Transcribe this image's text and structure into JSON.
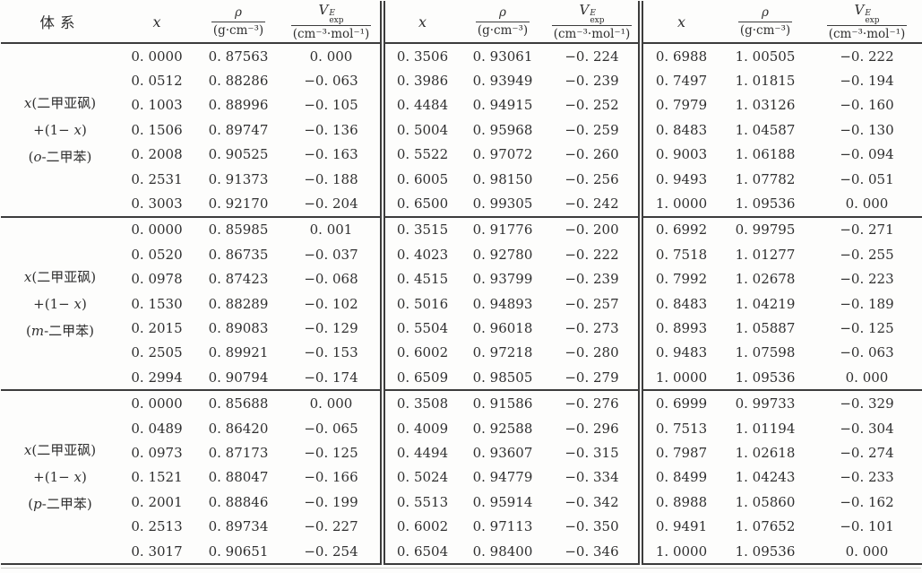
{
  "table": {
    "header": {
      "system": "体系",
      "x": "x",
      "rho_num": "ρ",
      "rho_den": "(g·cm⁻³)",
      "v_base": "V",
      "v_sup": "E",
      "v_sub": "exp",
      "v_den": "(cm⁻³·mol⁻¹)"
    },
    "groups": [
      {
        "label": {
          "l1_italic": "x",
          "l1_rest": "(二甲亚砜)",
          "l2_pre": "+(1− ",
          "l2_italic": "x",
          "l2_post": ")",
          "l3_open": "(",
          "l3_italic": "o",
          "l3_rest": "-二甲苯)"
        },
        "rows": [
          [
            "0. 0000",
            "0. 87563",
            "0. 000",
            "0. 3506",
            "0. 93061",
            "−0. 224",
            "0. 6988",
            "1. 00505",
            "−0. 222"
          ],
          [
            "0. 0512",
            "0. 88286",
            "−0. 063",
            "0. 3986",
            "0. 93949",
            "−0. 239",
            "0. 7497",
            "1. 01815",
            "−0. 194"
          ],
          [
            "0. 1003",
            "0. 88996",
            "−0. 105",
            "0. 4484",
            "0. 94915",
            "−0. 252",
            "0. 7979",
            "1. 03126",
            "−0. 160"
          ],
          [
            "0. 1506",
            "0. 89747",
            "−0. 136",
            "0. 5004",
            "0. 95968",
            "−0. 259",
            "0. 8483",
            "1. 04587",
            "−0. 130"
          ],
          [
            "0. 2008",
            "0. 90525",
            "−0. 163",
            "0. 5522",
            "0. 97072",
            "−0. 260",
            "0. 9003",
            "1. 06188",
            "−0. 094"
          ],
          [
            "0. 2531",
            "0. 91373",
            "−0. 188",
            "0. 6005",
            "0. 98150",
            "−0. 256",
            "0. 9493",
            "1. 07782",
            "−0. 051"
          ],
          [
            "0. 3003",
            "0. 92170",
            "−0. 204",
            "0. 6500",
            "0. 99305",
            "−0. 242",
            "1. 0000",
            "1. 09536",
            "0. 000"
          ]
        ]
      },
      {
        "label": {
          "l1_italic": "x",
          "l1_rest": "(二甲亚砜)",
          "l2_pre": "+(1− ",
          "l2_italic": "x",
          "l2_post": ")",
          "l3_open": "(",
          "l3_italic": "m",
          "l3_rest": "-二甲苯)"
        },
        "rows": [
          [
            "0. 0000",
            "0. 85985",
            "0. 001",
            "0. 3515",
            "0. 91776",
            "−0. 200",
            "0. 6992",
            "0. 99795",
            "−0. 271"
          ],
          [
            "0. 0520",
            "0. 86735",
            "−0. 037",
            "0. 4023",
            "0. 92780",
            "−0. 222",
            "0. 7518",
            "1. 01277",
            "−0. 255"
          ],
          [
            "0. 0978",
            "0. 87423",
            "−0. 068",
            "0. 4515",
            "0. 93799",
            "−0. 239",
            "0. 7992",
            "1. 02678",
            "−0. 223"
          ],
          [
            "0. 1530",
            "0. 88289",
            "−0. 102",
            "0. 5016",
            "0. 94893",
            "−0. 257",
            "0. 8483",
            "1. 04219",
            "−0. 189"
          ],
          [
            "0. 2015",
            "0. 89083",
            "−0. 129",
            "0. 5504",
            "0. 96018",
            "−0. 273",
            "0. 8993",
            "1. 05887",
            "−0. 125"
          ],
          [
            "0. 2505",
            "0. 89921",
            "−0. 153",
            "0. 6002",
            "0. 97218",
            "−0. 280",
            "0. 9483",
            "1. 07598",
            "−0. 063"
          ],
          [
            "0. 2994",
            "0. 90794",
            "−0. 174",
            "0. 6509",
            "0. 98505",
            "−0. 279",
            "1. 0000",
            "1. 09536",
            "0. 000"
          ]
        ]
      },
      {
        "label": {
          "l1_italic": "x",
          "l1_rest": "(二甲亚砜)",
          "l2_pre": "+(1− ",
          "l2_italic": "x",
          "l2_post": ")",
          "l3_open": "(",
          "l3_italic": "p",
          "l3_rest": "-二甲苯)"
        },
        "rows": [
          [
            "0. 0000",
            "0. 85688",
            "0. 000",
            "0. 3508",
            "0. 91586",
            "−0. 276",
            "0. 6999",
            "0. 99733",
            "−0. 329"
          ],
          [
            "0. 0489",
            "0. 86420",
            "−0. 065",
            "0. 4009",
            "0. 92588",
            "−0. 296",
            "0. 7513",
            "1. 01194",
            "−0. 304"
          ],
          [
            "0. 0973",
            "0. 87173",
            "−0. 125",
            "0. 4494",
            "0. 93607",
            "−0. 315",
            "0. 7987",
            "1. 02618",
            "−0. 274"
          ],
          [
            "0. 1521",
            "0. 88047",
            "−0. 166",
            "0. 5024",
            "0. 94779",
            "−0. 334",
            "0. 8499",
            "1. 04243",
            "−0. 233"
          ],
          [
            "0. 2001",
            "0. 88846",
            "−0. 199",
            "0. 5513",
            "0. 95914",
            "−0. 342",
            "0. 8988",
            "1. 05860",
            "−0. 162"
          ],
          [
            "0. 2513",
            "0. 89734",
            "−0. 227",
            "0. 6002",
            "0. 97113",
            "−0. 350",
            "0. 9491",
            "1. 07652",
            "−0. 101"
          ],
          [
            "0. 3017",
            "0. 90651",
            "−0. 254",
            "0. 6504",
            "0. 98400",
            "−0. 346",
            "1. 0000",
            "1. 09536",
            "0. 000"
          ]
        ]
      }
    ]
  }
}
